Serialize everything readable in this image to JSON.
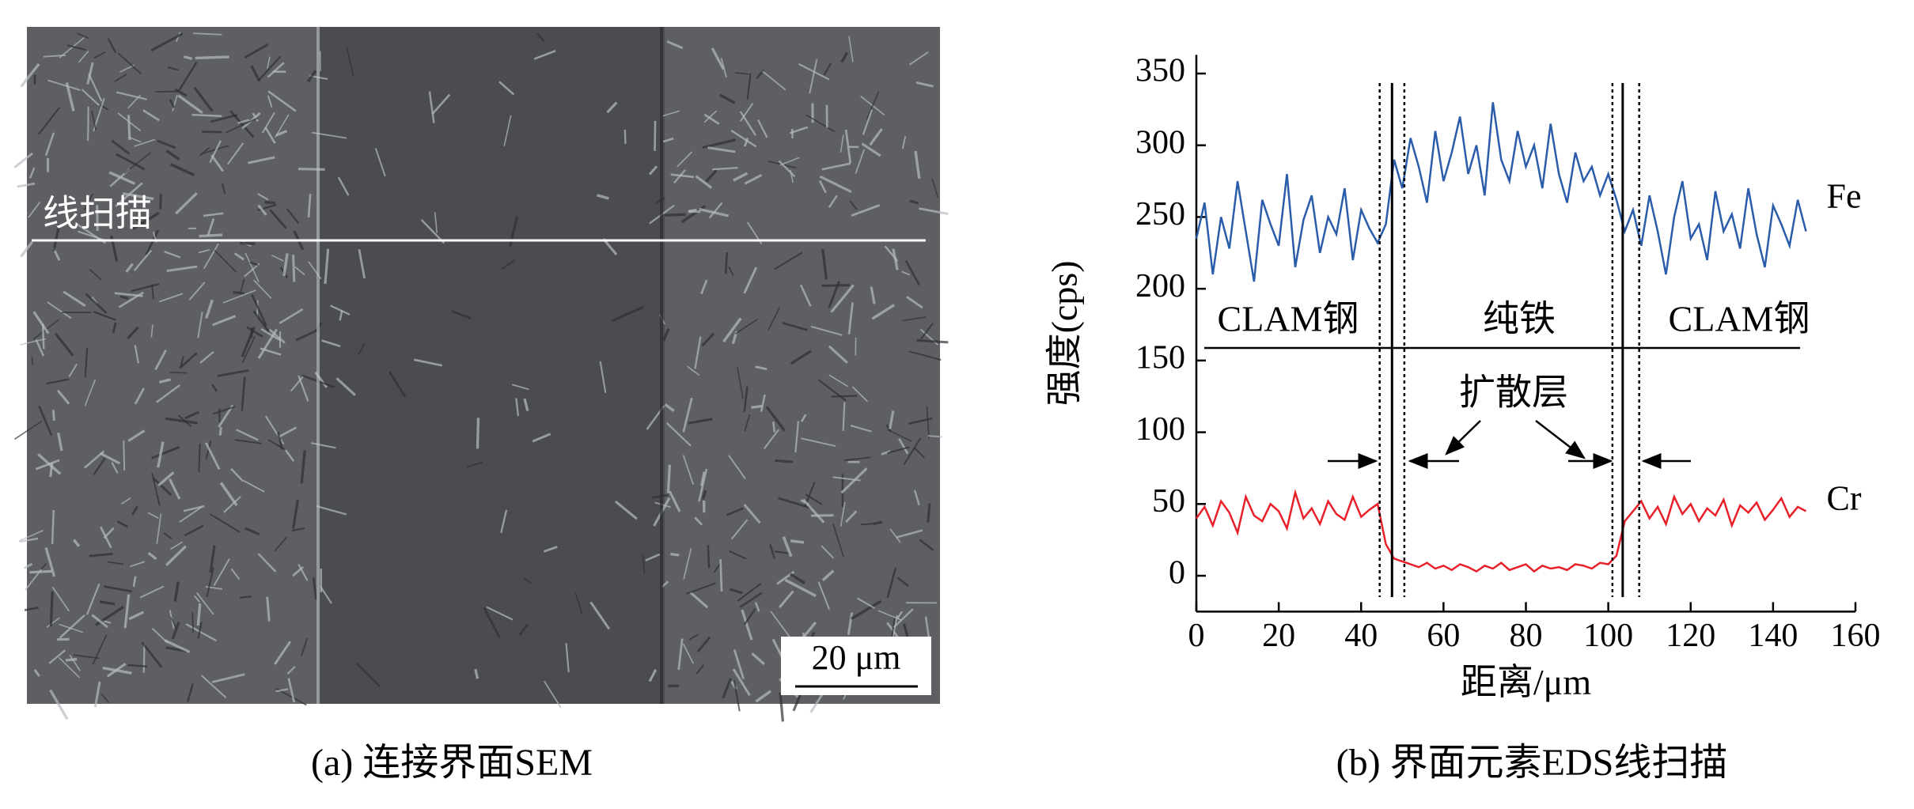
{
  "panel_a": {
    "scan_label": "线扫描",
    "scale_bar": "20 μm",
    "caption": "(a) 连接界面SEM"
  },
  "chart_data": {
    "type": "line",
    "caption": "(b) 界面元素EDS线扫描",
    "x_label": "距离/μm",
    "y_label": "强度(cps)",
    "xlim": [
      0,
      160
    ],
    "xticks": [
      0,
      20,
      40,
      60,
      80,
      100,
      120,
      140,
      160
    ],
    "ylim": [
      -25,
      363
    ],
    "yticks": [
      0,
      50,
      100,
      150,
      200,
      250,
      300,
      350
    ],
    "grid": false,
    "x": [
      0,
      2,
      4,
      6,
      8,
      10,
      12,
      14,
      16,
      18,
      20,
      22,
      24,
      26,
      28,
      30,
      32,
      34,
      36,
      38,
      40,
      42,
      44,
      46,
      48,
      50,
      52,
      54,
      56,
      58,
      60,
      62,
      64,
      66,
      68,
      70,
      72,
      74,
      76,
      78,
      80,
      82,
      84,
      86,
      88,
      90,
      92,
      94,
      96,
      98,
      100,
      102,
      104,
      106,
      108,
      110,
      112,
      114,
      116,
      118,
      120,
      122,
      124,
      126,
      128,
      130,
      132,
      134,
      136,
      138,
      140,
      142,
      144,
      146,
      148
    ],
    "series": [
      {
        "name": "Fe",
        "color": "#2a5caa",
        "values": [
          235,
          260,
          210,
          250,
          228,
          275,
          240,
          205,
          262,
          245,
          230,
          280,
          215,
          248,
          265,
          225,
          250,
          238,
          270,
          220,
          255,
          242,
          232,
          245,
          290,
          270,
          305,
          285,
          260,
          310,
          275,
          295,
          320,
          280,
          300,
          265,
          330,
          290,
          275,
          310,
          285,
          300,
          270,
          315,
          280,
          260,
          295,
          275,
          285,
          265,
          280,
          262,
          240,
          255,
          230,
          265,
          240,
          210,
          250,
          275,
          235,
          245,
          220,
          268,
          240,
          252,
          228,
          270,
          238,
          215,
          258,
          245,
          230,
          262,
          240
        ]
      },
      {
        "name": "Cr",
        "color": "#e8202a",
        "values": [
          40,
          48,
          35,
          52,
          44,
          30,
          55,
          42,
          38,
          50,
          45,
          33,
          58,
          40,
          47,
          36,
          52,
          43,
          39,
          55,
          41,
          46,
          50,
          22,
          12,
          10,
          8,
          6,
          9,
          5,
          7,
          4,
          8,
          6,
          3,
          7,
          5,
          9,
          4,
          6,
          8,
          3,
          7,
          5,
          6,
          4,
          8,
          7,
          5,
          9,
          8,
          14,
          38,
          45,
          52,
          40,
          48,
          36,
          55,
          43,
          50,
          38,
          47,
          42,
          53,
          35,
          49,
          44,
          51,
          39,
          46,
          54,
          41,
          48,
          45
        ]
      }
    ],
    "solid_lines": [
      47.5,
      103.5
    ],
    "dotted_lines": [
      44.5,
      50.5,
      101,
      107.5
    ],
    "annotations": [
      "CLAM钢",
      "纯铁",
      "CLAM钢",
      "扩散层"
    ]
  }
}
